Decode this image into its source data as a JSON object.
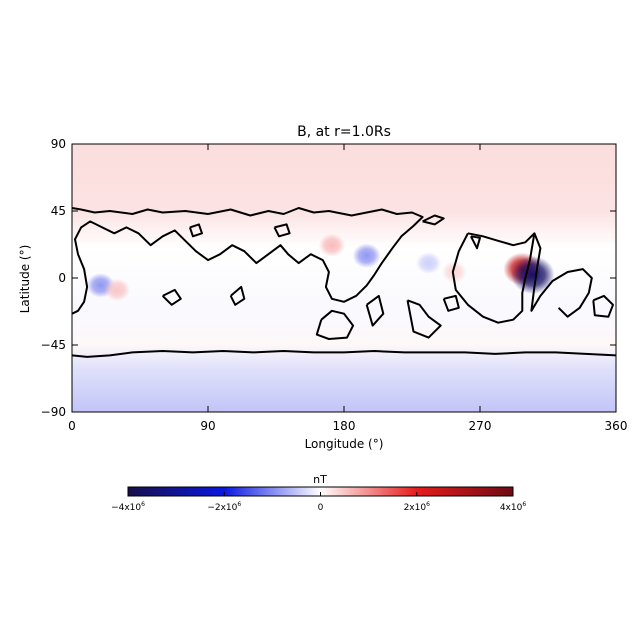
{
  "chart_data": {
    "type": "heatmap",
    "title": "B, at r=1.0Rs",
    "xlabel": "Longitude (°)",
    "ylabel": "Latitude (°)",
    "xlim": [
      0,
      360
    ],
    "ylim": [
      -90,
      90
    ],
    "xticks": [
      {
        "value": 0,
        "label": "0"
      },
      {
        "value": 90,
        "label": "90"
      },
      {
        "value": 180,
        "label": "180"
      },
      {
        "value": 270,
        "label": "270"
      },
      {
        "value": 360,
        "label": "360"
      }
    ],
    "yticks": [
      {
        "value": 90,
        "label": "90"
      },
      {
        "value": 45,
        "label": "45"
      },
      {
        "value": 0,
        "label": "0"
      },
      {
        "value": -45,
        "label": "-45"
      },
      {
        "value": -90,
        "label": "-90"
      }
    ],
    "colorbar": {
      "label": "nT",
      "min": -4000000,
      "max": 4000000,
      "ticks": [
        {
          "value": -4000000,
          "base": "-4x10",
          "exp": "6"
        },
        {
          "value": -2000000,
          "base": "-2x10",
          "exp": "6"
        },
        {
          "value": 0,
          "base": "0",
          "exp": ""
        },
        {
          "value": 2000000,
          "base": "2x10",
          "exp": "6"
        },
        {
          "value": 4000000,
          "base": "4x10",
          "exp": "6"
        }
      ],
      "colormap": "diverging blue-white-red",
      "colors": [
        "#1a0f4a",
        "#0a18e0",
        "#ffffff",
        "#e61c1c",
        "#6e0b14"
      ]
    },
    "features": [
      {
        "kind": "blob",
        "lon": 298,
        "lat": 6,
        "value": 2600000
      },
      {
        "kind": "blob",
        "lon": 305,
        "lat": 2,
        "value": -3600000
      },
      {
        "kind": "blob",
        "lon": 195,
        "lat": 15,
        "value": -900000
      },
      {
        "kind": "blob",
        "lon": 172,
        "lat": 22,
        "value": 600000
      },
      {
        "kind": "blob",
        "lon": 19,
        "lat": -5,
        "value": -900000
      },
      {
        "kind": "blob",
        "lon": 30,
        "lat": -8,
        "value": 500000
      },
      {
        "kind": "blob",
        "lon": 236,
        "lat": 10,
        "value": -400000
      },
      {
        "kind": "blob",
        "lon": 253,
        "lat": 4,
        "value": 350000
      }
    ],
    "background": [
      {
        "lat": 90,
        "value": 300000
      },
      {
        "lat": 45,
        "value": 250000
      },
      {
        "lat": 20,
        "value": 0
      },
      {
        "lat": -25,
        "value": -50000
      },
      {
        "lat": -45,
        "value": 60000
      },
      {
        "lat": -60,
        "value": -250000
      },
      {
        "lat": -90,
        "value": -500000
      }
    ],
    "contour": {
      "level": 0,
      "color": "#000000",
      "lines": [
        [
          [
            0,
            47
          ],
          [
            6,
            46
          ],
          [
            15,
            44
          ],
          [
            25,
            45
          ],
          [
            40,
            43
          ],
          [
            50,
            46
          ],
          [
            60,
            44
          ],
          [
            75,
            45
          ],
          [
            90,
            43
          ],
          [
            105,
            46
          ],
          [
            118,
            42
          ],
          [
            130,
            45
          ],
          [
            140,
            43
          ],
          [
            150,
            47
          ],
          [
            160,
            44
          ],
          [
            170,
            45
          ],
          [
            185,
            42
          ],
          [
            195,
            44
          ],
          [
            205,
            46
          ],
          [
            215,
            43
          ],
          [
            225,
            44
          ],
          [
            232,
            41
          ],
          [
            226,
            35
          ],
          [
            218,
            28
          ],
          [
            212,
            20
          ],
          [
            205,
            10
          ],
          [
            200,
            2
          ],
          [
            195,
            -5
          ],
          [
            188,
            -12
          ],
          [
            180,
            -16
          ],
          [
            172,
            -14
          ],
          [
            168,
            -6
          ],
          [
            170,
            4
          ],
          [
            166,
            12
          ],
          [
            158,
            16
          ],
          [
            150,
            10
          ],
          [
            143,
            16
          ],
          [
            138,
            22
          ],
          [
            130,
            16
          ],
          [
            122,
            10
          ],
          [
            114,
            18
          ],
          [
            106,
            22
          ],
          [
            98,
            16
          ],
          [
            90,
            12
          ],
          [
            82,
            18
          ],
          [
            74,
            26
          ],
          [
            68,
            32
          ],
          [
            60,
            28
          ],
          [
            52,
            22
          ],
          [
            44,
            30
          ],
          [
            36,
            34
          ],
          [
            28,
            30
          ],
          [
            20,
            34
          ],
          [
            12,
            38
          ],
          [
            6,
            34
          ],
          [
            2,
            26
          ],
          [
            4,
            16
          ],
          [
            8,
            6
          ],
          [
            10,
            -6
          ],
          [
            8,
            -16
          ],
          [
            4,
            -22
          ],
          [
            0,
            -24
          ]
        ],
        [
          [
            0,
            -52
          ],
          [
            10,
            -53
          ],
          [
            25,
            -52
          ],
          [
            40,
            -50
          ],
          [
            60,
            -49
          ],
          [
            80,
            -50
          ],
          [
            100,
            -49
          ],
          [
            120,
            -50
          ],
          [
            140,
            -49
          ],
          [
            160,
            -50
          ],
          [
            180,
            -50
          ],
          [
            200,
            -49
          ],
          [
            220,
            -50
          ],
          [
            240,
            -50
          ],
          [
            260,
            -50
          ],
          [
            280,
            -51
          ],
          [
            300,
            -50
          ],
          [
            320,
            -50
          ],
          [
            340,
            -51
          ],
          [
            360,
            -52
          ]
        ],
        [
          [
            262,
            30
          ],
          [
            272,
            28
          ],
          [
            282,
            25
          ],
          [
            292,
            22
          ],
          [
            300,
            24
          ],
          [
            306,
            30
          ],
          [
            303,
            12
          ],
          [
            300,
            0
          ],
          [
            298,
            -10
          ],
          [
            298,
            -22
          ],
          [
            292,
            -28
          ],
          [
            282,
            -30
          ],
          [
            272,
            -26
          ],
          [
            262,
            -18
          ],
          [
            254,
            -8
          ],
          [
            252,
            4
          ],
          [
            256,
            18
          ],
          [
            262,
            30
          ]
        ],
        [
          [
            306,
            30
          ],
          [
            310,
            20
          ],
          [
            308,
            8
          ],
          [
            306,
            -6
          ],
          [
            304,
            -22
          ],
          [
            310,
            -12
          ],
          [
            318,
            -2
          ],
          [
            328,
            4
          ],
          [
            338,
            6
          ],
          [
            344,
            0
          ],
          [
            342,
            -10
          ],
          [
            336,
            -20
          ],
          [
            328,
            -26
          ],
          [
            322,
            -20
          ]
        ],
        [
          [
            165,
            -28
          ],
          [
            172,
            -22
          ],
          [
            180,
            -24
          ],
          [
            186,
            -32
          ],
          [
            182,
            -40
          ],
          [
            170,
            -41
          ],
          [
            162,
            -38
          ],
          [
            165,
            -28
          ]
        ],
        [
          [
            345,
            -15
          ],
          [
            352,
            -12
          ],
          [
            358,
            -18
          ],
          [
            355,
            -26
          ],
          [
            346,
            -25
          ],
          [
            345,
            -15
          ]
        ],
        [
          [
            60,
            -12
          ],
          [
            68,
            -8
          ],
          [
            72,
            -14
          ],
          [
            66,
            -18
          ],
          [
            60,
            -12
          ]
        ],
        [
          [
            105,
            -12
          ],
          [
            112,
            -6
          ],
          [
            114,
            -14
          ],
          [
            108,
            -18
          ],
          [
            105,
            -12
          ]
        ],
        [
          [
            195,
            -18
          ],
          [
            203,
            -12
          ],
          [
            206,
            -24
          ],
          [
            199,
            -32
          ],
          [
            195,
            -18
          ]
        ],
        [
          [
            222,
            -15
          ],
          [
            230,
            -18
          ],
          [
            236,
            -26
          ],
          [
            244,
            -32
          ],
          [
            236,
            -40
          ],
          [
            226,
            -36
          ],
          [
            222,
            -15
          ]
        ],
        [
          [
            246,
            -14
          ],
          [
            254,
            -12
          ],
          [
            256,
            -20
          ],
          [
            249,
            -22
          ],
          [
            246,
            -14
          ]
        ],
        [
          [
            232,
            38
          ],
          [
            240,
            36
          ],
          [
            246,
            40
          ],
          [
            240,
            42
          ],
          [
            232,
            38
          ]
        ],
        [
          [
            78,
            34
          ],
          [
            84,
            36
          ],
          [
            86,
            30
          ],
          [
            80,
            28
          ],
          [
            78,
            34
          ]
        ],
        [
          [
            134,
            34
          ],
          [
            142,
            36
          ],
          [
            144,
            30
          ],
          [
            137,
            28
          ],
          [
            134,
            34
          ]
        ],
        [
          [
            264,
            28
          ],
          [
            268,
            20
          ],
          [
            270,
            27
          ],
          [
            264,
            28
          ]
        ]
      ]
    }
  }
}
